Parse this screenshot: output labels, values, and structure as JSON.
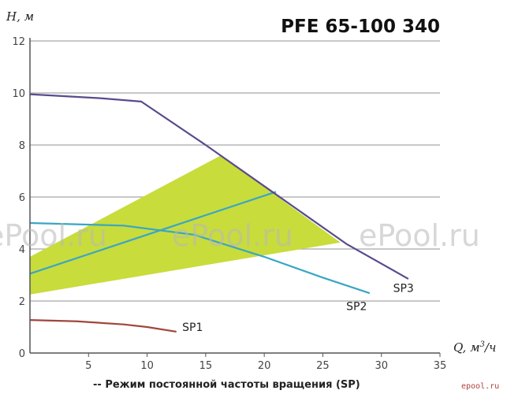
{
  "chart_data": {
    "type": "line",
    "title": "PFE 65-100 340",
    "ylabel": "H, м",
    "xlabel_main": "Q, м",
    "xlabel_sup": "3",
    "xlabel_tail": "/ч",
    "caption": "-- Режим постоянной частоты вращения (SP)",
    "xlim": [
      0,
      35
    ],
    "ylim": [
      0,
      12
    ],
    "x_ticks": [
      "5",
      "10",
      "15",
      "20",
      "25",
      "30",
      "35"
    ],
    "y_ticks": [
      "0",
      "2",
      "4",
      "6",
      "8",
      "10",
      "12"
    ],
    "grid": "horizontal",
    "colors": {
      "grid": "#a8a8a8",
      "axis": "#555555",
      "area": "#c8dc3c",
      "SP1": "#a0463c",
      "SP2": "#3aa6c4",
      "SP3": "#5a4a8c",
      "rising": "#3aa6c4"
    },
    "series": [
      {
        "name": "SP1",
        "x": [
          0,
          4,
          8,
          10,
          12.5
        ],
        "y": [
          1.27,
          1.22,
          1.1,
          1.0,
          0.82
        ]
      },
      {
        "name": "SP2",
        "x": [
          0,
          8,
          14,
          20,
          25,
          29
        ],
        "y": [
          5.0,
          4.9,
          4.55,
          3.7,
          2.9,
          2.3
        ]
      },
      {
        "name": "SP3",
        "x": [
          0,
          6,
          9.5,
          15,
          21,
          27,
          32.3
        ],
        "y": [
          9.95,
          9.8,
          9.67,
          8.0,
          6.1,
          4.2,
          2.85
        ]
      }
    ],
    "rising_line": {
      "x": [
        0,
        21
      ],
      "y": [
        3.05,
        6.2
      ]
    },
    "operating_area": {
      "x": [
        0,
        16.3,
        26.5,
        0
      ],
      "y": [
        3.7,
        7.6,
        4.25,
        2.25
      ]
    },
    "series_labels": [
      {
        "text": "SP1",
        "x": 13.0,
        "y": 0.85
      },
      {
        "text": "SP2",
        "x": 27.0,
        "y": 1.65
      },
      {
        "text": "SP3",
        "x": 31.0,
        "y": 2.35
      }
    ],
    "watermark": "ePool.ru",
    "watermark_small": "epool.ru"
  }
}
